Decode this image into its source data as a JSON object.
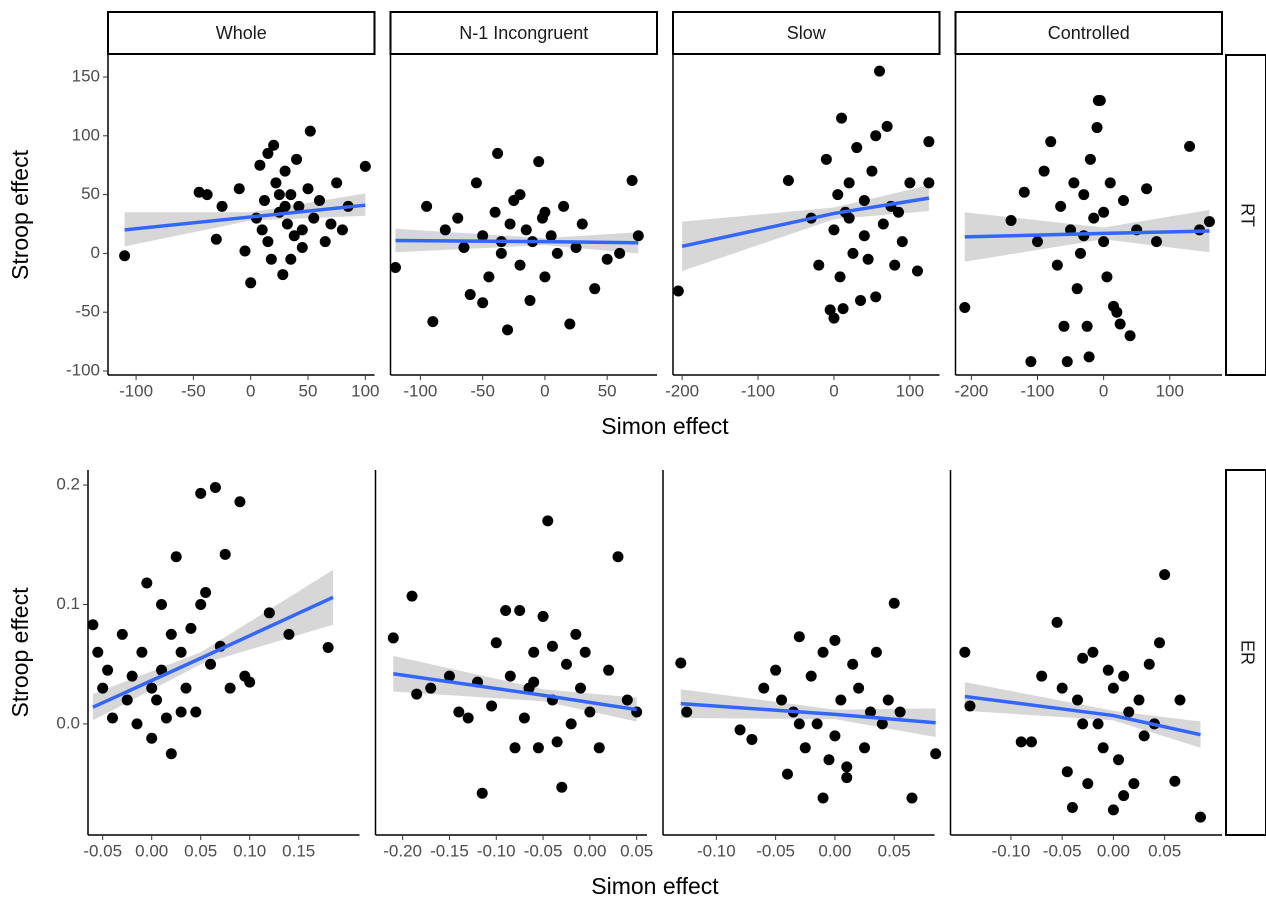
{
  "facets": {
    "columns": [
      "Whole",
      "N-1 Incongruent",
      "Slow",
      "Controlled"
    ],
    "rows": [
      {
        "label": "RT",
        "x_label": "Simon effect",
        "y_label": "Stroop effect"
      },
      {
        "label": "ER",
        "x_label": "Simon effect",
        "y_label": "Stroop effect"
      }
    ]
  },
  "chart_data": [
    {
      "type": "scatter",
      "color": "#000000",
      "x": [
        -110,
        -45,
        -38,
        -30,
        -25,
        -10,
        -5,
        0,
        5,
        8,
        10,
        12,
        15,
        18,
        20,
        22,
        25,
        28,
        30,
        32,
        35,
        38,
        40,
        42,
        45,
        50,
        52,
        55,
        60,
        65,
        70,
        75,
        80,
        85,
        100,
        15,
        25,
        35,
        45,
        30
      ],
      "y": [
        -2,
        52,
        50,
        12,
        40,
        55,
        2,
        -25,
        30,
        75,
        20,
        45,
        85,
        -5,
        92,
        60,
        35,
        -18,
        70,
        25,
        50,
        15,
        80,
        40,
        5,
        55,
        104,
        30,
        45,
        10,
        25,
        60,
        20,
        40,
        74,
        10,
        50,
        -5,
        20,
        40
      ],
      "xlim": [
        -124.5,
        108
      ],
      "ylim": [
        -103.4,
        168.7
      ],
      "xticks": [
        -100,
        -50,
        0,
        50,
        100
      ],
      "yticks": [
        -100,
        -50,
        0,
        50,
        100,
        150
      ],
      "fit": {
        "color": "#3366ff",
        "x": [
          -110,
          0,
          100
        ],
        "y": [
          20,
          31,
          41
        ],
        "lower": [
          6,
          28,
          32
        ],
        "upper": [
          35,
          35,
          51
        ]
      }
    },
    {
      "type": "scatter",
      "color": "#000000",
      "x": [
        -120,
        -90,
        -95,
        -80,
        -70,
        -65,
        -60,
        -55,
        -50,
        -45,
        -40,
        -38,
        -35,
        -30,
        -28,
        -25,
        -20,
        -15,
        -12,
        -10,
        -5,
        -2,
        0,
        5,
        10,
        15,
        20,
        25,
        30,
        40,
        50,
        60,
        70,
        75,
        -50,
        -20,
        0,
        -35
      ],
      "y": [
        -12,
        -58,
        40,
        20,
        30,
        5,
        -35,
        60,
        15,
        -20,
        35,
        85,
        0,
        -65,
        25,
        45,
        -10,
        20,
        -40,
        10,
        78,
        30,
        -20,
        15,
        0,
        40,
        -60,
        5,
        25,
        -30,
        -5,
        0,
        62,
        15,
        -42,
        50,
        35,
        10
      ],
      "xlim": [
        -124,
        90
      ],
      "ylim": [
        -103.4,
        168.7
      ],
      "xticks": [
        -100,
        -50,
        0,
        50
      ],
      "fit": {
        "color": "#3366ff",
        "x": [
          -120,
          0,
          75
        ],
        "y": [
          11,
          10,
          9
        ],
        "lower": [
          1,
          7,
          0
        ],
        "upper": [
          21,
          13,
          18
        ]
      }
    },
    {
      "type": "scatter",
      "color": "#000000",
      "x": [
        -205,
        -60,
        -30,
        -20,
        -10,
        -5,
        0,
        5,
        8,
        10,
        12,
        15,
        20,
        25,
        30,
        35,
        40,
        45,
        50,
        55,
        55,
        60,
        65,
        70,
        75,
        80,
        90,
        100,
        110,
        125,
        125,
        40,
        20,
        0,
        85
      ],
      "y": [
        -32,
        62,
        30,
        -10,
        80,
        -48,
        20,
        50,
        -20,
        115,
        -47,
        35,
        60,
        0,
        90,
        -40,
        45,
        -5,
        70,
        100,
        -37,
        155,
        25,
        108,
        40,
        -10,
        10,
        60,
        -15,
        95,
        60,
        15,
        30,
        -55,
        35
      ],
      "xlim": [
        -212,
        139
      ],
      "ylim": [
        -103.4,
        168.7
      ],
      "xticks": [
        -200,
        -100,
        0,
        100
      ],
      "fit": {
        "color": "#3366ff",
        "x": [
          -200,
          0,
          125
        ],
        "y": [
          6,
          34,
          47
        ],
        "lower": [
          -15,
          29,
          36
        ],
        "upper": [
          27,
          39,
          58
        ]
      }
    },
    {
      "type": "scatter",
      "color": "#000000",
      "x": [
        -210,
        -140,
        -120,
        -110,
        -100,
        -90,
        -80,
        -70,
        -65,
        -60,
        -55,
        -50,
        -45,
        -40,
        -35,
        -30,
        -25,
        -22,
        -20,
        -15,
        -10,
        -8,
        -5,
        0,
        5,
        10,
        15,
        20,
        25,
        30,
        40,
        50,
        65,
        80,
        130,
        145,
        160,
        -30,
        0
      ],
      "y": [
        -46,
        28,
        52,
        -92,
        10,
        70,
        95,
        -10,
        40,
        -62,
        -92,
        20,
        60,
        -30,
        0,
        50,
        -62,
        -88,
        80,
        30,
        107,
        130,
        130,
        10,
        -20,
        60,
        -45,
        -50,
        -60,
        45,
        -70,
        20,
        55,
        10,
        91,
        20,
        27,
        15,
        35
      ],
      "xlim": [
        -224,
        179
      ],
      "ylim": [
        -103.4,
        168.7
      ],
      "xticks": [
        -200,
        -100,
        0,
        100
      ],
      "fit": {
        "color": "#3366ff",
        "x": [
          -210,
          0,
          160
        ],
        "y": [
          14,
          17,
          19
        ],
        "lower": [
          -7,
          12,
          1
        ],
        "upper": [
          35,
          22,
          37
        ]
      }
    },
    {
      "type": "scatter",
      "color": "#000000",
      "x": [
        -0.06,
        -0.055,
        -0.05,
        -0.045,
        -0.04,
        -0.03,
        -0.025,
        -0.02,
        -0.015,
        -0.01,
        -0.005,
        0,
        0,
        0.005,
        0.01,
        0.01,
        0.015,
        0.02,
        0.02,
        0.025,
        0.03,
        0.035,
        0.04,
        0.045,
        0.05,
        0.055,
        0.06,
        0.065,
        0.07,
        0.075,
        0.08,
        0.09,
        0.095,
        0.1,
        0.12,
        0.14,
        0.18,
        0.05,
        0.03
      ],
      "y": [
        0.083,
        0.06,
        0.03,
        0.045,
        0.005,
        0.075,
        0.02,
        0.04,
        0,
        0.06,
        0.118,
        0.03,
        -0.012,
        0.02,
        0.1,
        0.045,
        0.005,
        0.075,
        -0.025,
        0.14,
        0.06,
        0.03,
        0.08,
        0.01,
        0.193,
        0.11,
        0.05,
        0.198,
        0.065,
        0.142,
        0.03,
        0.186,
        0.04,
        0.035,
        0.093,
        0.075,
        0.064,
        0.1,
        0.01
      ],
      "xlim": [
        -0.065,
        0.212
      ],
      "ylim": [
        -0.093,
        0.2126
      ],
      "xticks": [
        -0.05,
        {
          "value": 0,
          "label": "0.00"
        },
        0.05,
        {
          "value": 0.1,
          "label": "0.10"
        },
        0.15
      ],
      "yticks": [
        {
          "value": 0,
          "label": "0.0"
        },
        0.1,
        0.2
      ],
      "fit": {
        "color": "#3366ff",
        "x": [
          -0.06,
          0.05,
          0.185
        ],
        "y": [
          0.014,
          0.055,
          0.106
        ],
        "lower": [
          0.003,
          0.05,
          0.083
        ],
        "upper": [
          0.025,
          0.06,
          0.129
        ]
      }
    },
    {
      "type": "scatter",
      "color": "#000000",
      "x": [
        -0.21,
        -0.19,
        -0.185,
        -0.17,
        -0.15,
        -0.14,
        -0.13,
        -0.12,
        -0.115,
        -0.105,
        -0.1,
        -0.09,
        -0.085,
        -0.08,
        -0.075,
        -0.07,
        -0.065,
        -0.06,
        -0.055,
        -0.05,
        -0.045,
        -0.04,
        -0.035,
        -0.03,
        -0.025,
        -0.02,
        -0.015,
        -0.01,
        -0.005,
        0,
        0.01,
        0.02,
        0.03,
        0.04,
        0.05,
        -0.06,
        -0.04
      ],
      "y": [
        0.072,
        0.107,
        0.025,
        0.03,
        0.04,
        0.01,
        0.005,
        0.035,
        -0.058,
        0.015,
        0.068,
        0.095,
        0.04,
        -0.02,
        0.095,
        0.005,
        0.03,
        0.06,
        -0.02,
        0.09,
        0.17,
        0.02,
        -0.015,
        -0.053,
        0.05,
        0,
        0.075,
        0.03,
        0.06,
        0.01,
        -0.02,
        0.045,
        0.14,
        0.02,
        0.01,
        0.035,
        0.065
      ],
      "xlim": [
        -0.229,
        0.061
      ],
      "ylim": [
        -0.093,
        0.2126
      ],
      "xticks": [
        {
          "value": -0.2,
          "label": "-0.20"
        },
        -0.15,
        {
          "value": -0.1,
          "label": "-0.10"
        },
        -0.05,
        {
          "value": 0,
          "label": "0.00"
        },
        0.05
      ],
      "fit": {
        "color": "#3366ff",
        "x": [
          -0.21,
          -0.05,
          0.05
        ],
        "y": [
          0.042,
          0.024,
          0.012
        ],
        "lower": [
          0.027,
          0.019,
          0.002
        ],
        "upper": [
          0.057,
          0.029,
          0.022
        ]
      }
    },
    {
      "type": "scatter",
      "color": "#000000",
      "x": [
        -0.13,
        -0.125,
        -0.08,
        -0.07,
        -0.06,
        -0.05,
        -0.045,
        -0.04,
        -0.035,
        -0.03,
        -0.025,
        -0.02,
        -0.015,
        -0.01,
        -0.005,
        0,
        0,
        0.005,
        0.01,
        0.015,
        0.02,
        0.025,
        0.03,
        0.035,
        0.04,
        0.045,
        0.05,
        0.055,
        0.065,
        0.085,
        -0.01,
        0.01,
        -0.03
      ],
      "y": [
        0.051,
        0.01,
        -0.005,
        -0.013,
        0.03,
        0.045,
        0.02,
        -0.042,
        0.01,
        0.073,
        -0.02,
        0.04,
        0,
        0.06,
        -0.03,
        0.07,
        -0.01,
        0.02,
        -0.045,
        0.05,
        0.03,
        -0.02,
        0.01,
        0.06,
        0,
        0.02,
        0.101,
        0.01,
        -0.062,
        -0.025,
        -0.062,
        -0.036,
        0
      ],
      "xlim": [
        -0.145,
        0.084
      ],
      "ylim": [
        -0.093,
        0.2126
      ],
      "xticks": [
        {
          "value": -0.1,
          "label": "-0.10"
        },
        -0.05,
        {
          "value": 0,
          "label": "0.00"
        },
        0.05
      ],
      "fit": {
        "color": "#3366ff",
        "x": [
          -0.13,
          0,
          0.085
        ],
        "y": [
          0.017,
          0.008,
          0.001
        ],
        "lower": [
          0.005,
          0.004,
          -0.011
        ],
        "upper": [
          0.029,
          0.012,
          0.013
        ]
      }
    },
    {
      "type": "scatter",
      "color": "#000000",
      "x": [
        -0.145,
        -0.14,
        -0.09,
        -0.08,
        -0.07,
        -0.055,
        -0.05,
        -0.045,
        -0.04,
        -0.035,
        -0.03,
        -0.025,
        -0.02,
        -0.015,
        -0.01,
        -0.005,
        0,
        0,
        0.005,
        0.01,
        0.015,
        0.02,
        0.025,
        0.03,
        0.035,
        0.04,
        0.045,
        0.05,
        0.06,
        0.065,
        0.085,
        -0.03,
        0.01
      ],
      "y": [
        0.06,
        0.015,
        -0.015,
        -0.015,
        0.04,
        0.085,
        0.03,
        -0.04,
        -0.07,
        0.02,
        0.055,
        -0.05,
        0.06,
        0,
        -0.02,
        0.045,
        -0.072,
        0.03,
        -0.03,
        0.04,
        0.01,
        -0.05,
        0.02,
        -0.01,
        0.05,
        0,
        0.068,
        0.125,
        -0.048,
        0.02,
        -0.078,
        0,
        -0.06
      ],
      "xlim": [
        -0.159,
        0.106
      ],
      "ylim": [
        -0.093,
        0.2126
      ],
      "xticks": [
        {
          "value": -0.1,
          "label": "-0.10"
        },
        -0.05,
        {
          "value": 0,
          "label": "0.00"
        },
        0.05
      ],
      "fit": {
        "color": "#3366ff",
        "x": [
          -0.145,
          0,
          0.085
        ],
        "y": [
          0.023,
          0.007,
          -0.009
        ],
        "lower": [
          0.011,
          0.003,
          -0.02
        ],
        "upper": [
          0.035,
          0.011,
          0.002
        ]
      }
    }
  ]
}
